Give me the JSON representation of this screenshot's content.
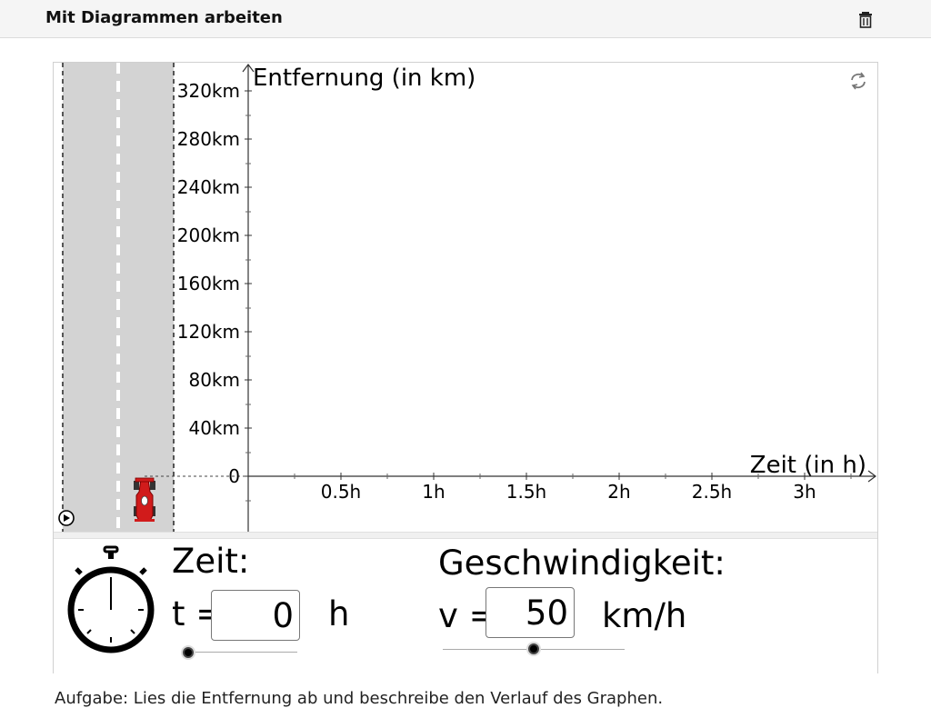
{
  "header": {
    "title": "Mit Diagrammen arbeiten",
    "delete_icon": "trash-icon"
  },
  "graph": {
    "y_axis_label": "Entfernung (in km)",
    "x_axis_label": "Zeit (in h)",
    "y_ticks": [
      "320km",
      "280km",
      "240km",
      "200km",
      "160km",
      "120km",
      "80km",
      "40km",
      "0"
    ],
    "x_ticks": [
      "0.5h",
      "1h",
      "1.5h",
      "2h",
      "2.5h",
      "3h"
    ],
    "reset_icon": "reset-icon",
    "play_icon": "play-icon",
    "car_icon": "race-car-icon"
  },
  "controls": {
    "time": {
      "heading": "Zeit:",
      "var": "t =",
      "value": "0",
      "unit": "h"
    },
    "speed": {
      "heading": "Geschwindigkeit:",
      "var": "v =",
      "value": "50",
      "unit": "km/h"
    },
    "stopwatch_icon": "stopwatch-icon"
  },
  "footer_text": "Aufgabe: Lies die Entfernung ab und beschreibe den Verlauf des Graphen."
}
